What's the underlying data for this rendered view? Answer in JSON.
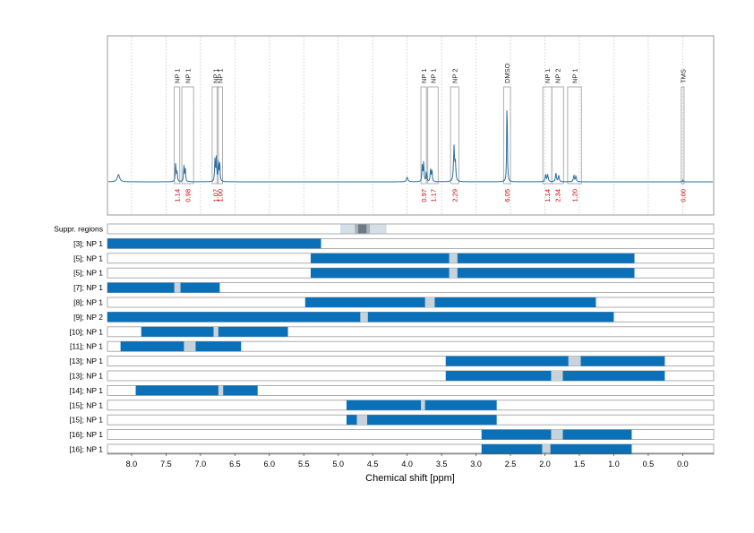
{
  "chart_data": {
    "type": "bar",
    "title": "",
    "xlabel": "Chemical shift [ppm]",
    "ylabel": "",
    "x_reversed": true,
    "xlim": [
      8.35,
      -0.45
    ],
    "x_ticks": [
      "8.0",
      "7.5",
      "7.0",
      "6.5",
      "6.0",
      "5.5",
      "5.0",
      "4.5",
      "4.0",
      "3.5",
      "3.0",
      "2.5",
      "2.0",
      "1.5",
      "1.0",
      "0.5",
      "0.0"
    ],
    "colors": {
      "spectrum": "#2a6fa1",
      "bar": "#0a70b8",
      "gap": "#c8d2da",
      "integral_text": "#d00000",
      "suppr_light": "#d5dfe8",
      "suppr_mid": "#a6b3bd",
      "suppr_dark": "#6b7a86",
      "frame": "#9a9a9a"
    },
    "spectrum_peaks": [
      {
        "center": 8.19,
        "height": 0.08,
        "width": 0.02
      },
      {
        "center": 7.36,
        "height": 0.22,
        "width": 0.006
      },
      {
        "center": 7.34,
        "height": 0.12,
        "width": 0.006
      },
      {
        "center": 7.24,
        "height": 0.18,
        "width": 0.006
      },
      {
        "center": 7.22,
        "height": 0.14,
        "width": 0.006
      },
      {
        "center": 6.79,
        "height": 0.24,
        "width": 0.006
      },
      {
        "center": 6.77,
        "height": 0.26,
        "width": 0.006
      },
      {
        "center": 6.74,
        "height": 0.22,
        "width": 0.006
      },
      {
        "center": 6.72,
        "height": 0.2,
        "width": 0.006
      },
      {
        "center": 4.0,
        "height": 0.05,
        "width": 0.012
      },
      {
        "center": 3.78,
        "height": 0.18,
        "width": 0.006
      },
      {
        "center": 3.76,
        "height": 0.22,
        "width": 0.006
      },
      {
        "center": 3.72,
        "height": 0.12,
        "width": 0.006
      },
      {
        "center": 3.66,
        "height": 0.15,
        "width": 0.006
      },
      {
        "center": 3.64,
        "height": 0.13,
        "width": 0.006
      },
      {
        "center": 3.32,
        "height": 0.38,
        "width": 0.008
      },
      {
        "center": 3.3,
        "height": 0.2,
        "width": 0.008
      },
      {
        "center": 2.55,
        "height": 1.0,
        "width": 0.005
      },
      {
        "center": 1.99,
        "height": 0.08,
        "width": 0.008
      },
      {
        "center": 1.96,
        "height": 0.08,
        "width": 0.008
      },
      {
        "center": 1.84,
        "height": 0.1,
        "width": 0.008
      },
      {
        "center": 1.8,
        "height": 0.07,
        "width": 0.008
      },
      {
        "center": 1.58,
        "height": 0.07,
        "width": 0.008
      },
      {
        "center": 1.55,
        "height": 0.06,
        "width": 0.008
      },
      {
        "center": 0.0,
        "height": 0.02,
        "width": 0.005
      }
    ],
    "peak_regions": [
      {
        "label": "NP 1",
        "from": 7.38,
        "to": 7.3,
        "integral": "1.14"
      },
      {
        "label": "NP 1",
        "from": 7.27,
        "to": 7.1,
        "integral": "0.98"
      },
      {
        "label": "NP 1",
        "from": 6.83,
        "to": 6.74,
        "integral": "1.07"
      },
      {
        "label": "NP 1",
        "from": 6.76,
        "to": 6.68,
        "integral": "1.00"
      },
      {
        "label": "NP 1",
        "from": 3.8,
        "to": 3.72,
        "integral": "0.97"
      },
      {
        "label": "NP 1",
        "from": 3.7,
        "to": 3.55,
        "integral": "1.17"
      },
      {
        "label": "NP 2",
        "from": 3.37,
        "to": 3.25,
        "integral": "2.29"
      },
      {
        "label": "DMSO",
        "from": 2.6,
        "to": 2.5,
        "integral": "6.05"
      },
      {
        "label": "NP 1",
        "from": 2.03,
        "to": 1.9,
        "integral": "1.14"
      },
      {
        "label": "NP 2",
        "from": 1.9,
        "to": 1.73,
        "integral": "2.34"
      },
      {
        "label": "NP 1",
        "from": 1.67,
        "to": 1.47,
        "integral": "1.20"
      },
      {
        "label": "TMS",
        "from": 0.02,
        "to": -0.02,
        "integral": "0.00"
      }
    ],
    "suppressed_regions": {
      "label": "Suppr. regions",
      "light": [
        4.97,
        4.3
      ],
      "mid": [
        4.76,
        4.54
      ],
      "dark": [
        4.71,
        4.59
      ]
    },
    "series": [
      {
        "name": "[3]; NP 1",
        "from": 8.35,
        "to": 5.25,
        "gap": null
      },
      {
        "name": "[5]; NP 1",
        "from": 5.4,
        "to": 0.7,
        "gap": [
          3.39,
          3.27
        ]
      },
      {
        "name": "[5]; NP 1",
        "from": 5.4,
        "to": 0.7,
        "gap": [
          3.39,
          3.27
        ]
      },
      {
        "name": "[7]; NP 1",
        "from": 8.35,
        "to": 6.72,
        "gap": [
          7.38,
          7.29
        ]
      },
      {
        "name": "[8]; NP 1",
        "from": 5.48,
        "to": 1.26,
        "gap": [
          3.74,
          3.6
        ]
      },
      {
        "name": "[9]; NP 2",
        "from": 8.35,
        "to": 1.0,
        "gap": [
          4.68,
          4.57
        ]
      },
      {
        "name": "[10]; NP 1",
        "from": 7.86,
        "to": 5.73,
        "gap": [
          6.81,
          6.74
        ]
      },
      {
        "name": "[11]; NP 1",
        "from": 8.16,
        "to": 6.41,
        "gap": [
          7.24,
          7.07
        ]
      },
      {
        "name": "[13]; NP 1",
        "from": 3.44,
        "to": 0.26,
        "gap": [
          1.66,
          1.48
        ]
      },
      {
        "name": "[13]; NP 1",
        "from": 3.44,
        "to": 0.26,
        "gap": [
          1.91,
          1.74
        ]
      },
      {
        "name": "[14]; NP 1",
        "from": 7.94,
        "to": 6.17,
        "gap": [
          6.74,
          6.67
        ]
      },
      {
        "name": "[15]; NP 1",
        "from": 4.88,
        "to": 2.7,
        "gap": [
          3.8,
          3.74
        ]
      },
      {
        "name": "[15]; NP 1",
        "from": 4.88,
        "to": 2.7,
        "gap": [
          4.73,
          4.58
        ]
      },
      {
        "name": "[16]; NP 1",
        "from": 2.92,
        "to": 0.74,
        "gap": [
          1.91,
          1.74
        ]
      },
      {
        "name": "[16]; NP 1",
        "from": 2.92,
        "to": 0.74,
        "gap": [
          2.04,
          1.92
        ]
      }
    ]
  }
}
